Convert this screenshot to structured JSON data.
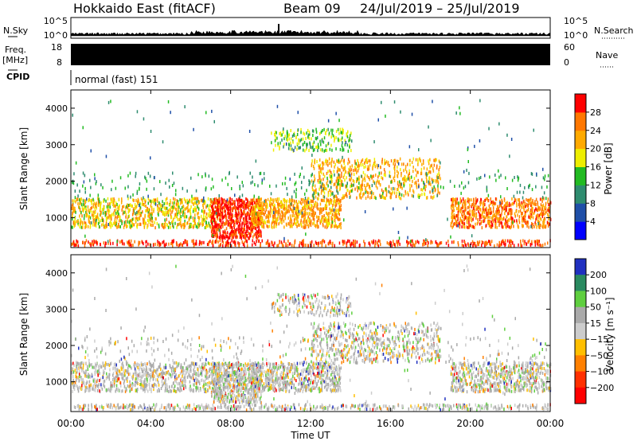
{
  "header": {
    "station": "Hokkaido East (fitACF)",
    "beam": "Beam 09",
    "dates": "24/Jul/2019 – 25/Jul/2019"
  },
  "top_panels": {
    "nsky_label": "N.Sky",
    "nsky_ticks": [
      "10^5",
      "10^0"
    ],
    "nsearch_label": "N.Search",
    "nsearch_ticks": [
      "10^5",
      "10^0"
    ],
    "freq_label_1": "Freq.",
    "freq_label_2": "[MHz]",
    "freq_ticks": [
      "18",
      "8"
    ],
    "nave_label": "Nave",
    "nave_ticks": [
      "60",
      "0"
    ],
    "cpid_label": "CPID",
    "cpid_value": "normal (fast) 151"
  },
  "chart_data": [
    {
      "type": "heatmap",
      "name": "power",
      "ylabel": "Slant Range [km]",
      "yticks": [
        "1000",
        "2000",
        "3000",
        "4000"
      ],
      "ylim": [
        180,
        4500
      ],
      "colorbar_label": "Power [dB]",
      "colorbar_ticks": [
        "4",
        "8",
        "12",
        "16",
        "20",
        "24",
        "28"
      ],
      "colorbar_range": [
        0,
        32
      ],
      "colors": [
        "#0000ff",
        "#1f4fa8",
        "#2e8c6f",
        "#22bb22",
        "#eeee00",
        "#ffaa00",
        "#ff7700",
        "#ff0000"
      ],
      "x_ticks": [
        "00:00",
        "04:00",
        "08:00",
        "12:00",
        "16:00",
        "20:00",
        "00:00"
      ],
      "xlim_hours": [
        0,
        24
      ]
    },
    {
      "type": "heatmap",
      "name": "velocity",
      "ylabel": "Slant Range [km]",
      "yticks": [
        "1000",
        "2000",
        "3000",
        "4000"
      ],
      "ylim": [
        180,
        4500
      ],
      "colorbar_label": "Velocity [m s⁻¹]",
      "colorbar_ticks": [
        "200",
        "100",
        "50",
        "15",
        "−15",
        "−50",
        "−100",
        "−200"
      ],
      "colorbar_range": [
        -250,
        250
      ],
      "colors": [
        "#2030c0",
        "#2a8a60",
        "#5fcf3f",
        "#aaaaaa",
        "#cccccc",
        "#ffbf00",
        "#ff8000",
        "#ff3000",
        "#ff0000"
      ],
      "x_ticks": [
        "00:00",
        "04:00",
        "08:00",
        "12:00",
        "16:00",
        "20:00",
        "00:00"
      ],
      "xlabel": "Time UT",
      "xlim_hours": [
        0,
        24
      ]
    }
  ]
}
